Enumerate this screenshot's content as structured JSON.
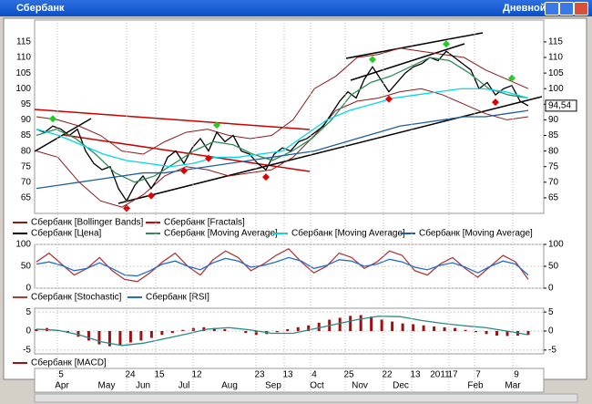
{
  "window": {
    "title": "Сбербанк",
    "mode": "Дневной"
  },
  "chart_data": [
    {
      "type": "line",
      "ylim": [
        60,
        122
      ],
      "yticks": [
        65,
        70,
        75,
        80,
        85,
        90,
        95,
        100,
        105,
        110,
        115
      ],
      "last_price": {
        "value": 94.54,
        "label": "94,54"
      },
      "bands": {
        "name": "Сбербанк [Bollinger Bands]",
        "color": "#8b1a1a",
        "upper": [
          91,
          90,
          88,
          85,
          80,
          79,
          83,
          86,
          87,
          85,
          84,
          85,
          90,
          100,
          104,
          110,
          111,
          113,
          112,
          111,
          110,
          106,
          103,
          100
        ],
        "lower": [
          80,
          78,
          70,
          64,
          62,
          66,
          72,
          75,
          74,
          72,
          73,
          74,
          78,
          85,
          93,
          96,
          97,
          99,
          100,
          98,
          95,
          92,
          90,
          91
        ]
      },
      "fractals": {
        "name": "Сбербанк [Fractals]",
        "color": "#e00000",
        "up_color": "#22cc22"
      },
      "series": [
        {
          "name": "Сбербанк [Цена]",
          "color": "#000000",
          "values": [
            87,
            86,
            88,
            87,
            85,
            87,
            80,
            76,
            74,
            75,
            68,
            64,
            69,
            72,
            68,
            72,
            78,
            80,
            76,
            81,
            84,
            80,
            86,
            83,
            85,
            80,
            79,
            76,
            74,
            79,
            81,
            80,
            83,
            84,
            86,
            88,
            92,
            96,
            99,
            97,
            103,
            107,
            103,
            99,
            102,
            105,
            107,
            108,
            110,
            109,
            112,
            110,
            108,
            106,
            100,
            102,
            98,
            100,
            101,
            96,
            94.54
          ]
        },
        {
          "name": "Сбербанк [Moving Average]",
          "color": "#2e8b57",
          "values": [
            85,
            87,
            84,
            79,
            73,
            70,
            72,
            76,
            80,
            83,
            82,
            79,
            77,
            80,
            84,
            90,
            98,
            102,
            104,
            107,
            110,
            109,
            105,
            100,
            98,
            97
          ]
        },
        {
          "name": "Сбербанк [Moving Average]",
          "color": "#00d8e8",
          "values": [
            87,
            85,
            82,
            79,
            77,
            76,
            75,
            76,
            78,
            78,
            79,
            80,
            85,
            90,
            93,
            95,
            97,
            98,
            99,
            100,
            100,
            99,
            97
          ]
        },
        {
          "name": "Сбербанк [Moving Average]",
          "color": "#1f5fa0",
          "values": [
            68,
            69,
            70,
            71,
            72,
            73,
            73,
            74,
            75,
            76,
            77,
            78,
            79,
            80,
            82,
            84,
            86,
            88,
            89,
            90,
            91,
            91,
            92,
            93
          ]
        }
      ]
    },
    {
      "type": "line",
      "ylim": [
        0,
        100
      ],
      "yticks": [
        0,
        50,
        100
      ],
      "series": [
        {
          "name": "Сбербанк [Stochastic]",
          "color": "#b03a3a",
          "values": [
            60,
            80,
            55,
            30,
            45,
            70,
            40,
            20,
            15,
            35,
            60,
            80,
            50,
            30,
            65,
            85,
            70,
            40,
            55,
            75,
            90,
            60,
            35,
            50,
            80,
            70,
            45,
            60,
            85,
            75,
            40,
            30,
            55,
            70,
            45,
            25,
            50,
            75,
            60,
            20
          ]
        },
        {
          "name": "Сбербанк [RSI]",
          "color": "#1f6fd0",
          "values": [
            55,
            60,
            52,
            40,
            45,
            58,
            45,
            30,
            28,
            40,
            55,
            62,
            50,
            42,
            58,
            68,
            62,
            48,
            52,
            60,
            70,
            62,
            45,
            52,
            65,
            62,
            50,
            55,
            66,
            60,
            48,
            42,
            52,
            58,
            48,
            35,
            50,
            62,
            55,
            30
          ]
        }
      ]
    },
    {
      "type": "macd",
      "ylim": [
        -6,
        6
      ],
      "yticks": [
        -5,
        0,
        5
      ],
      "series": [
        {
          "name": "Сбербанк [MACD]",
          "color": "#a01010",
          "values": [
            0.5,
            0.8,
            0.3,
            -0.5,
            -1.5,
            -2.5,
            -3.5,
            -4,
            -3.8,
            -3,
            -2.5,
            -1.8,
            -1,
            -0.5,
            0.3,
            0.8,
            1,
            0.8,
            0.5,
            0,
            -0.5,
            -1,
            -0.8,
            -0.3,
            0.5,
            1,
            1.5,
            2.2,
            3,
            3.5,
            4,
            4.2,
            3.8,
            3,
            2.5,
            2,
            1.8,
            1.5,
            1.2,
            1,
            0.8,
            0.3,
            -0.3,
            -0.8,
            -1.2,
            -1.3,
            -1.2,
            -1
          ],
          "signal": [
            0.5,
            0.2,
            -1,
            -2.8,
            -3.8,
            -3.2,
            -2,
            -0.8,
            0.5,
            0.9,
            0.3,
            -0.6,
            -0.6,
            0.6,
            1.8,
            3,
            3.9,
            3.8,
            2.8,
            2,
            1.4,
            0.9,
            0,
            -1
          ],
          "signal_color": "#2a8a8a"
        }
      ]
    }
  ],
  "x_axis": {
    "days": [
      "5",
      "24",
      "15",
      "12",
      "23",
      "13",
      "4",
      "25",
      "22",
      "13",
      "17",
      "7",
      "9"
    ],
    "months": [
      "Apr",
      "May",
      "Jun",
      "Jul",
      "Aug",
      "Sep",
      "Oct",
      "Nov",
      "Dec",
      "Feb",
      "Mar"
    ],
    "year": "2011"
  }
}
